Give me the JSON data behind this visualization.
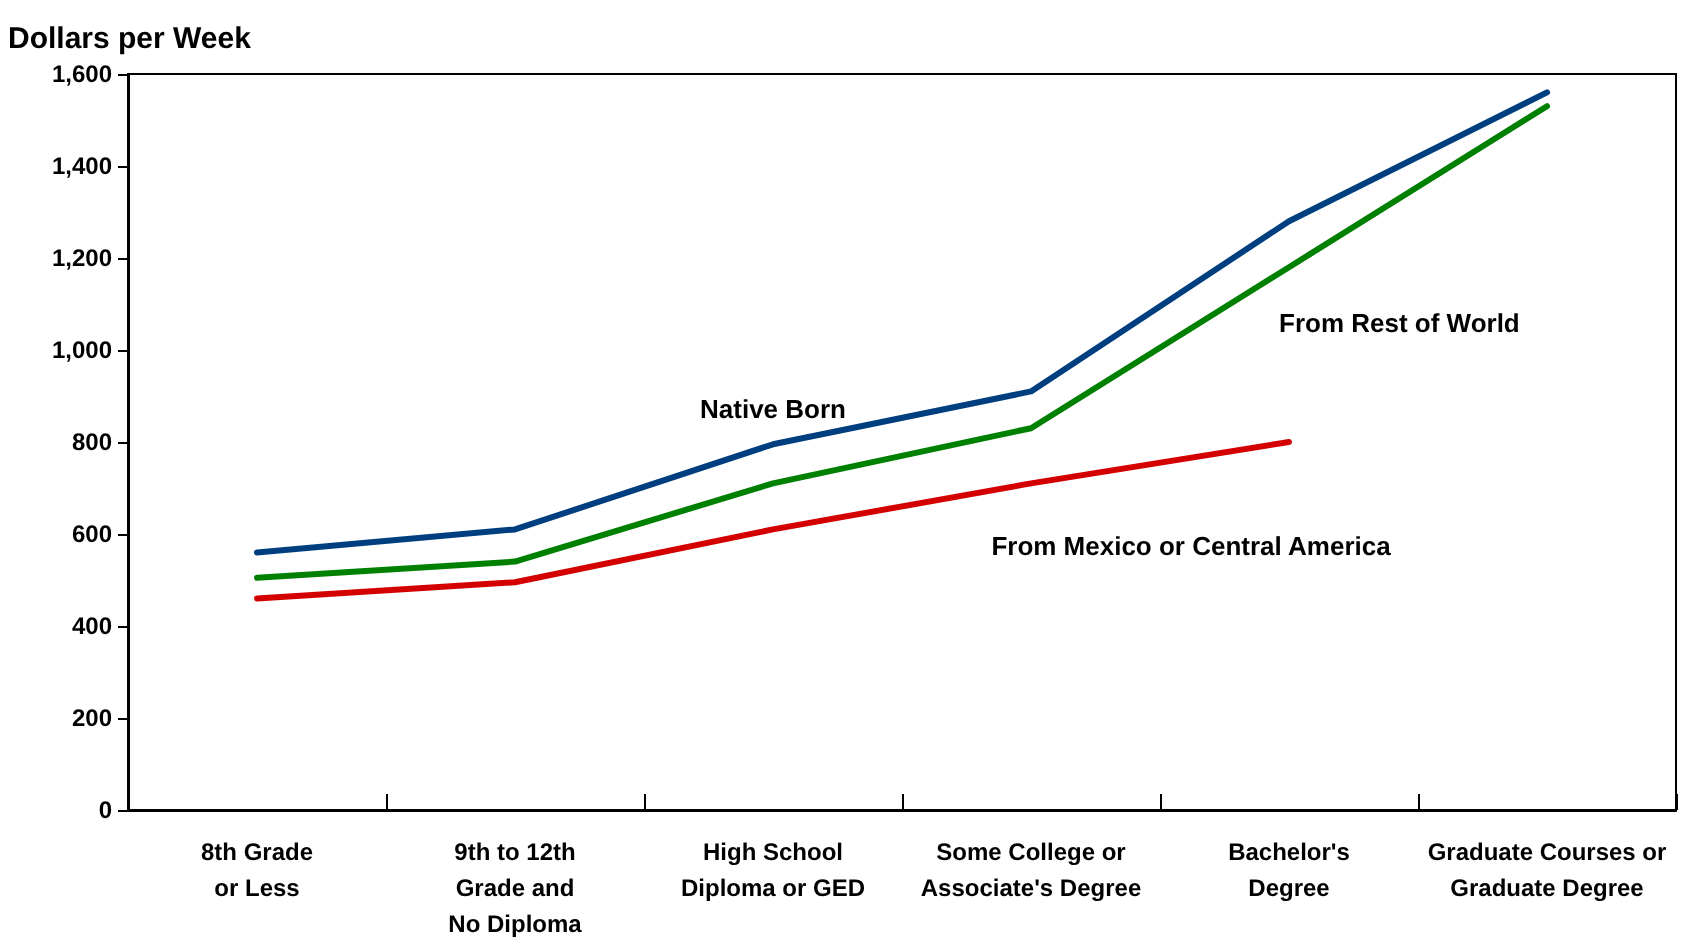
{
  "chart_data": {
    "type": "line",
    "ylabel": "Dollars per Week",
    "categories": [
      "8th Grade\nor Less",
      "9th to 12th\nGrade and\nNo Diploma",
      "High School\nDiploma or GED",
      "Some College or\nAssociate's Degree",
      "Bachelor's\nDegree",
      "Graduate Courses or\nGraduate Degree"
    ],
    "series": [
      {
        "name": "Native Born",
        "color": "#003f7f",
        "values": [
          560,
          610,
          795,
          910,
          1280,
          1560
        ]
      },
      {
        "name": "From Rest of World",
        "color": "#008000",
        "values": [
          505,
          540,
          710,
          830,
          1180,
          1530
        ]
      },
      {
        "name": "From Mexico or Central America",
        "color": "#d40000",
        "values": [
          460,
          495,
          610,
          710,
          800,
          null
        ]
      }
    ],
    "ylim": [
      0,
      1600
    ],
    "yticks": [
      0,
      200,
      400,
      600,
      800,
      {
        "value": 1000,
        "label": "1,000"
      },
      {
        "value": 1200,
        "label": "1,200"
      },
      {
        "value": 1400,
        "label": "1,400"
      },
      {
        "value": 1600,
        "label": "1,600"
      }
    ],
    "grid": false,
    "legend": false,
    "marker": "none",
    "line_style": "solid"
  }
}
